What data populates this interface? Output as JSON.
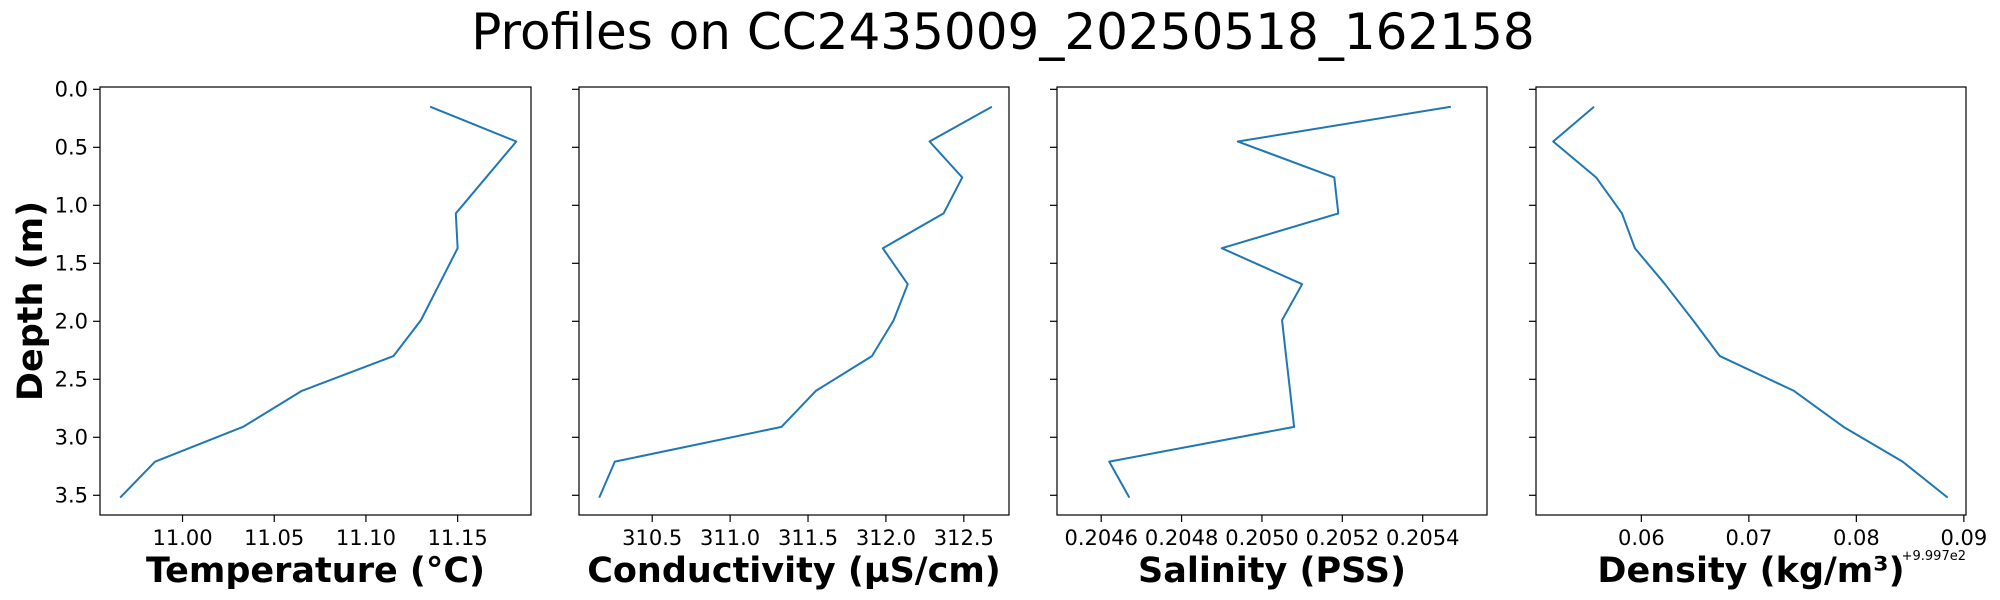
{
  "figure": {
    "title": "Profiles on CC2435009_20250518_162158"
  },
  "chart_data": [
    {
      "type": "line",
      "xlabel": "Temperature (°C)",
      "ylabel": "Depth (m)",
      "xlim": [
        10.955,
        11.19
      ],
      "ylim": [
        3.67,
        -0.02
      ],
      "y_inverted": true,
      "xticks": [
        "11.00",
        "11.05",
        "11.10",
        "11.15"
      ],
      "xtick_values": [
        11.0,
        11.05,
        11.1,
        11.15
      ],
      "yticks": [
        "0.0",
        "0.5",
        "1.0",
        "1.5",
        "2.0",
        "2.5",
        "3.0",
        "3.5"
      ],
      "ytick_values": [
        0.0,
        0.5,
        1.0,
        1.5,
        2.0,
        2.5,
        3.0,
        3.5
      ],
      "x_offset": "",
      "series": [
        {
          "values": [
            11.135,
            11.182,
            11.149,
            11.15,
            11.14,
            11.13,
            11.115,
            11.065,
            11.033,
            10.985,
            10.966
          ],
          "depth": [
            0.15,
            0.45,
            1.07,
            1.37,
            1.68,
            1.99,
            2.3,
            2.6,
            2.91,
            3.21,
            3.52
          ]
        }
      ]
    },
    {
      "type": "line",
      "xlabel": "Conductivity (µS/cm)",
      "ylabel": "",
      "xlim": [
        310.03,
        312.79
      ],
      "ylim": [
        3.67,
        -0.02
      ],
      "y_inverted": true,
      "xticks": [
        "310.5",
        "311.0",
        "311.5",
        "312.0",
        "312.5"
      ],
      "xtick_values": [
        310.5,
        311.0,
        311.5,
        312.0,
        312.5
      ],
      "yticks": [],
      "ytick_values": [
        0.0,
        0.5,
        1.0,
        1.5,
        2.0,
        2.5,
        3.0,
        3.5
      ],
      "x_offset": "",
      "series": [
        {
          "values": [
            312.68,
            312.28,
            312.49,
            312.37,
            311.98,
            312.14,
            312.05,
            311.91,
            311.55,
            311.33,
            310.26,
            310.16
          ],
          "depth": [
            0.15,
            0.45,
            0.76,
            1.07,
            1.37,
            1.68,
            1.99,
            2.3,
            2.6,
            2.91,
            3.21,
            3.52
          ]
        }
      ]
    },
    {
      "type": "line",
      "xlabel": "Salinity (PSS)",
      "ylabel": "",
      "xlim": [
        0.20449,
        0.20556
      ],
      "ylim": [
        3.67,
        -0.02
      ],
      "y_inverted": true,
      "xticks": [
        "0.2046",
        "0.2048",
        "0.2050",
        "0.2052",
        "0.2054"
      ],
      "xtick_values": [
        0.2046,
        0.2048,
        0.205,
        0.2052,
        0.2054
      ],
      "yticks": [],
      "ytick_values": [
        0.0,
        0.5,
        1.0,
        1.5,
        2.0,
        2.5,
        3.0,
        3.5
      ],
      "x_offset": "",
      "series": [
        {
          "values": [
            0.20547,
            0.20494,
            0.20518,
            0.20519,
            0.2049,
            0.2051,
            0.20505,
            0.20506,
            0.20507,
            0.20508,
            0.20462,
            0.20467
          ],
          "depth": [
            0.15,
            0.45,
            0.76,
            1.07,
            1.37,
            1.68,
            1.99,
            2.3,
            2.6,
            2.91,
            3.21,
            3.52
          ]
        }
      ]
    },
    {
      "type": "line",
      "xlabel": "Density (kg/m³)",
      "ylabel": "",
      "xlim": [
        0.0502,
        0.0902
      ],
      "ylim": [
        3.67,
        -0.02
      ],
      "y_inverted": true,
      "xticks": [
        "0.06",
        "0.07",
        "0.08",
        "0.09"
      ],
      "xtick_values": [
        0.06,
        0.07,
        0.08,
        0.09
      ],
      "yticks": [],
      "ytick_values": [
        0.0,
        0.5,
        1.0,
        1.5,
        2.0,
        2.5,
        3.0,
        3.5
      ],
      "x_offset": "+9.997e2",
      "series": [
        {
          "values": [
            0.0556,
            0.0518,
            0.0558,
            0.0582,
            0.0594,
            0.0622,
            0.0648,
            0.0673,
            0.0742,
            0.0788,
            0.0843,
            0.0885
          ],
          "depth": [
            0.15,
            0.45,
            0.76,
            1.07,
            1.37,
            1.68,
            1.99,
            2.3,
            2.6,
            2.91,
            3.21,
            3.52
          ]
        }
      ]
    }
  ]
}
